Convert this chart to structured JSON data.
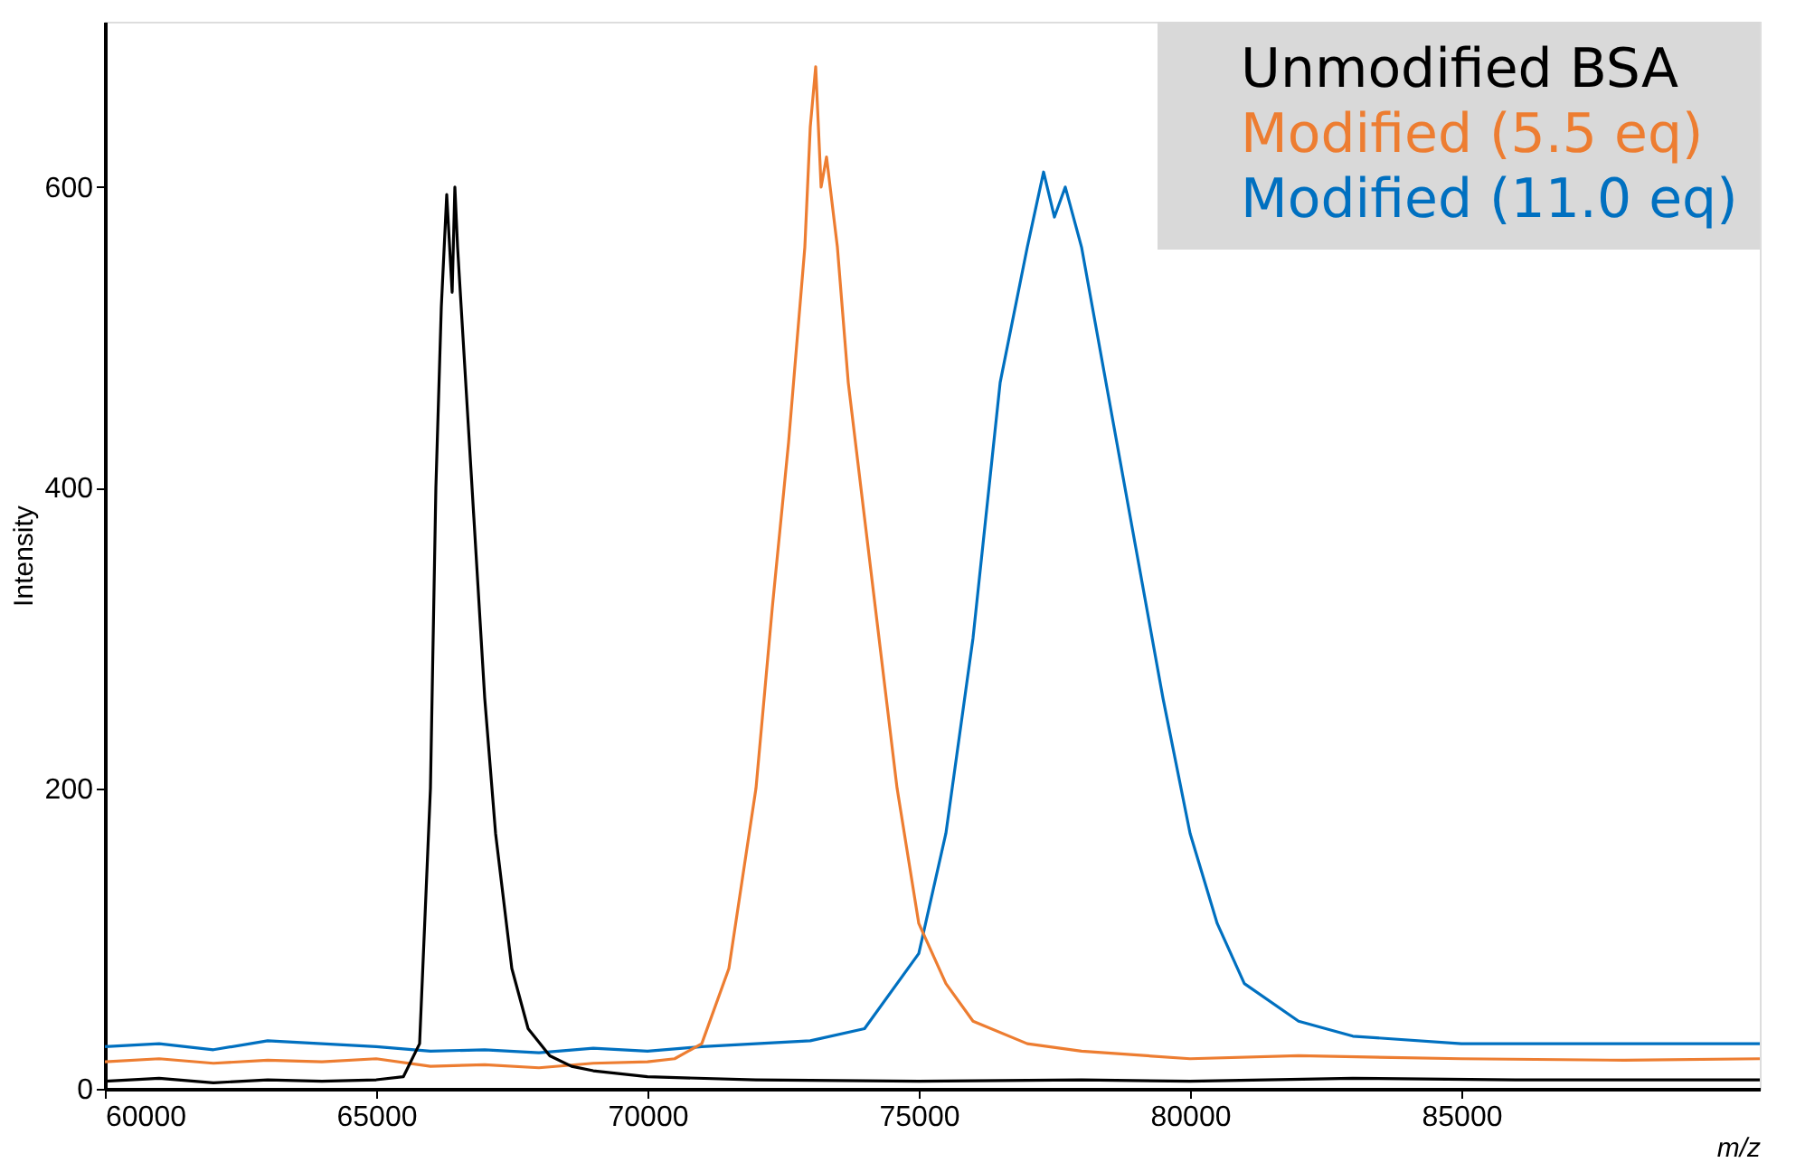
{
  "chart_data": {
    "type": "line",
    "xlabel": "m/z",
    "ylabel": "Intensity",
    "xlim": [
      60000,
      90500
    ],
    "ylim": [
      0,
      710
    ],
    "xticks": [
      60000,
      65000,
      70000,
      75000,
      80000,
      85000
    ],
    "yticks": [
      0,
      200,
      400,
      600
    ],
    "grid": false,
    "legend": "top right",
    "line_style": "solid",
    "marker": "none",
    "series": [
      {
        "name": "Unmodified BSA",
        "color": "#000000",
        "x": [
          60000,
          61000,
          62000,
          63000,
          64000,
          65000,
          65500,
          65800,
          66000,
          66100,
          66200,
          66300,
          66400,
          66450,
          66500,
          66600,
          66700,
          66800,
          67000,
          67200,
          67500,
          67800,
          68200,
          68600,
          69000,
          70000,
          72000,
          75000,
          78000,
          80000,
          83000,
          86000,
          90500
        ],
        "values": [
          5,
          7,
          4,
          6,
          5,
          6,
          8,
          30,
          200,
          400,
          520,
          595,
          530,
          600,
          560,
          500,
          440,
          380,
          260,
          170,
          80,
          40,
          22,
          15,
          12,
          8,
          6,
          5,
          6,
          5,
          7,
          6,
          6
        ]
      },
      {
        "name": "Modified (5.5 eq)",
        "color": "#ed7d31",
        "x": [
          60000,
          61000,
          62000,
          63000,
          64000,
          65000,
          66000,
          67000,
          68000,
          69000,
          70000,
          70500,
          71000,
          71500,
          72000,
          72300,
          72600,
          72900,
          73000,
          73100,
          73200,
          73300,
          73500,
          73700,
          74000,
          74300,
          74600,
          75000,
          75500,
          76000,
          77000,
          78000,
          80000,
          82000,
          85000,
          88000,
          90500
        ],
        "values": [
          18,
          20,
          17,
          19,
          18,
          20,
          15,
          16,
          14,
          17,
          18,
          20,
          30,
          80,
          200,
          320,
          430,
          560,
          640,
          680,
          600,
          620,
          560,
          470,
          380,
          290,
          200,
          110,
          70,
          45,
          30,
          25,
          20,
          22,
          20,
          19,
          20
        ]
      },
      {
        "name": "Modified (11.0 eq)",
        "color": "#0070c0",
        "x": [
          60000,
          61000,
          62000,
          63000,
          64000,
          65000,
          66000,
          67000,
          68000,
          69000,
          70000,
          71000,
          72000,
          73000,
          74000,
          75000,
          75500,
          76000,
          76500,
          77000,
          77300,
          77500,
          77700,
          78000,
          78500,
          79000,
          79500,
          80000,
          80500,
          81000,
          82000,
          83000,
          85000,
          88000,
          90500
        ],
        "values": [
          28,
          30,
          26,
          32,
          30,
          28,
          25,
          26,
          24,
          27,
          25,
          28,
          30,
          32,
          40,
          90,
          170,
          300,
          470,
          560,
          610,
          580,
          600,
          560,
          460,
          360,
          260,
          170,
          110,
          70,
          45,
          35,
          30,
          30,
          30
        ]
      }
    ]
  }
}
